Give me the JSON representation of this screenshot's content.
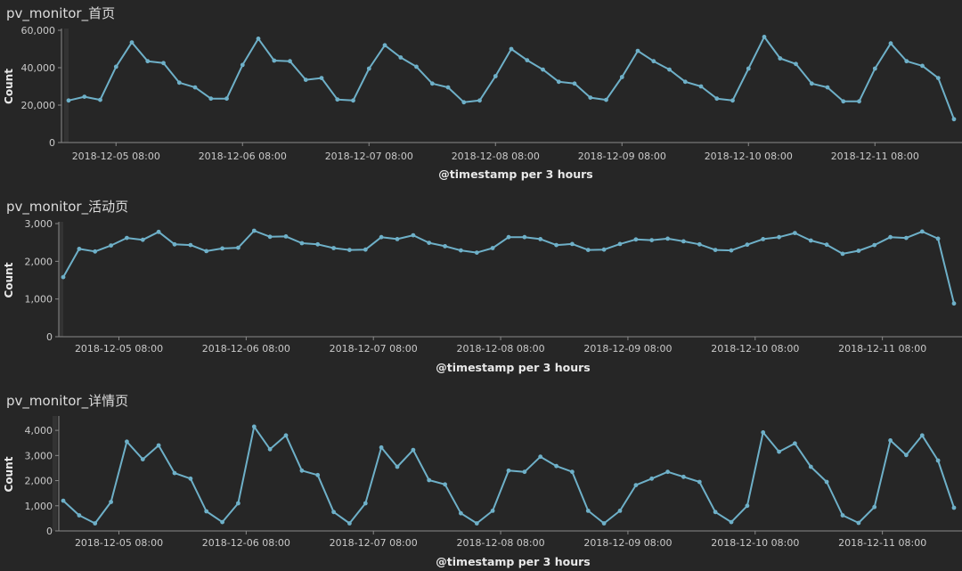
{
  "theme": {
    "line_color": "#6eb0c8",
    "background": "#262626"
  },
  "chart_data": [
    {
      "type": "line",
      "title": "pv_monitor_首页",
      "ylabel": "Count",
      "xlabel": "@timestamp per 3 hours",
      "ylim": [
        0,
        60000
      ],
      "yticks": [
        0,
        20000,
        40000,
        60000
      ],
      "ytick_labels": [
        "0",
        "20,000",
        "40,000",
        "60,000"
      ],
      "xtick_labels": [
        "2018-12-05 08:00",
        "2018-12-06 08:00",
        "2018-12-07 08:00",
        "2018-12-08 08:00",
        "2018-12-09 08:00",
        "2018-12-10 08:00",
        "2018-12-11 08:00"
      ],
      "xtick_index": [
        3,
        11,
        19,
        27,
        35,
        43,
        51
      ],
      "values": [
        22500,
        24500,
        22800,
        40500,
        53500,
        43500,
        42500,
        32000,
        29500,
        23500,
        23500,
        41500,
        55500,
        43800,
        43500,
        33500,
        34500,
        23000,
        22500,
        39500,
        52000,
        45500,
        40500,
        31500,
        29500,
        21500,
        22500,
        35500,
        50000,
        44000,
        39000,
        32500,
        31500,
        24000,
        22800,
        35000,
        49000,
        43500,
        39000,
        32500,
        30000,
        23500,
        22500,
        39500,
        56500,
        45000,
        42000,
        31500,
        29500,
        22000,
        22000,
        39500,
        53000,
        43500,
        41000,
        34500,
        12500
      ]
    },
    {
      "type": "line",
      "title": "pv_monitor_活动页",
      "ylabel": "Count",
      "xlabel": "@timestamp per 3 hours",
      "ylim": [
        0,
        3000
      ],
      "yticks": [
        0,
        1000,
        2000,
        3000
      ],
      "ytick_labels": [
        "0",
        "1,000",
        "2,000",
        "3,000"
      ],
      "xtick_labels": [
        "2018-12-05 08:00",
        "2018-12-06 08:00",
        "2018-12-07 08:00",
        "2018-12-08 08:00",
        "2018-12-09 08:00",
        "2018-12-10 08:00",
        "2018-12-11 08:00"
      ],
      "xtick_index": [
        3.5,
        11.5,
        19.5,
        27.5,
        35.5,
        43.5,
        51.5
      ],
      "values": [
        1580,
        2330,
        2260,
        2420,
        2620,
        2570,
        2780,
        2450,
        2430,
        2270,
        2340,
        2360,
        2810,
        2650,
        2660,
        2480,
        2450,
        2350,
        2300,
        2310,
        2640,
        2590,
        2690,
        2490,
        2400,
        2290,
        2230,
        2350,
        2640,
        2640,
        2590,
        2430,
        2460,
        2300,
        2310,
        2460,
        2580,
        2560,
        2600,
        2530,
        2450,
        2300,
        2290,
        2440,
        2590,
        2640,
        2750,
        2550,
        2440,
        2200,
        2280,
        2430,
        2640,
        2620,
        2790,
        2600,
        880
      ]
    },
    {
      "type": "line",
      "title": "pv_monitor_详情页",
      "ylabel": "Count",
      "xlabel": "@timestamp per 3 hours",
      "ylim": [
        0,
        4500
      ],
      "yticks": [
        0,
        1000,
        2000,
        3000,
        4000
      ],
      "ytick_labels": [
        "0",
        "1,000",
        "2,000",
        "3,000",
        "4,000"
      ],
      "xtick_labels": [
        "2018-12-05 08:00",
        "2018-12-06 08:00",
        "2018-12-07 08:00",
        "2018-12-08 08:00",
        "2018-12-09 08:00",
        "2018-12-10 08:00",
        "2018-12-11 08:00"
      ],
      "xtick_index": [
        3.5,
        11.5,
        19.5,
        27.5,
        35.5,
        43.5,
        51.5
      ],
      "values": [
        1200,
        620,
        300,
        1150,
        3550,
        2850,
        3400,
        2300,
        2080,
        780,
        350,
        1100,
        4150,
        3250,
        3800,
        2400,
        2220,
        750,
        300,
        1100,
        3320,
        2550,
        3220,
        2020,
        1850,
        700,
        300,
        800,
        2400,
        2350,
        2950,
        2580,
        2350,
        800,
        300,
        800,
        1820,
        2080,
        2350,
        2150,
        1950,
        750,
        350,
        1000,
        3920,
        3150,
        3480,
        2550,
        1950,
        620,
        320,
        950,
        3600,
        3020,
        3800,
        2800,
        920
      ]
    }
  ]
}
